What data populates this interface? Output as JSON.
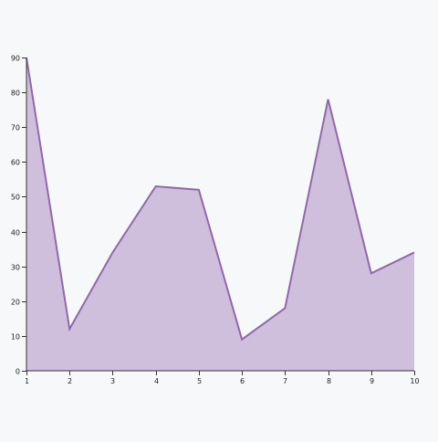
{
  "chart_data": {
    "type": "area",
    "x": [
      1,
      2,
      3,
      4,
      5,
      6,
      7,
      8,
      9,
      10
    ],
    "values": [
      90,
      12,
      34,
      53,
      52,
      9,
      18,
      78,
      28,
      34
    ],
    "xlim": [
      1,
      10
    ],
    "ylim": [
      0,
      90
    ],
    "x_ticks": [
      1,
      2,
      3,
      4,
      5,
      6,
      7,
      8,
      9,
      10
    ],
    "y_ticks": [
      0,
      10,
      20,
      30,
      40,
      50,
      60,
      70,
      80,
      90
    ],
    "title": "",
    "xlabel": "",
    "ylabel": "",
    "grid": false,
    "legend": "none",
    "colors": {
      "fill": "#cfbfdc",
      "line": "#9068ab",
      "axis": "#333333",
      "background": "#f7f8fa"
    }
  }
}
